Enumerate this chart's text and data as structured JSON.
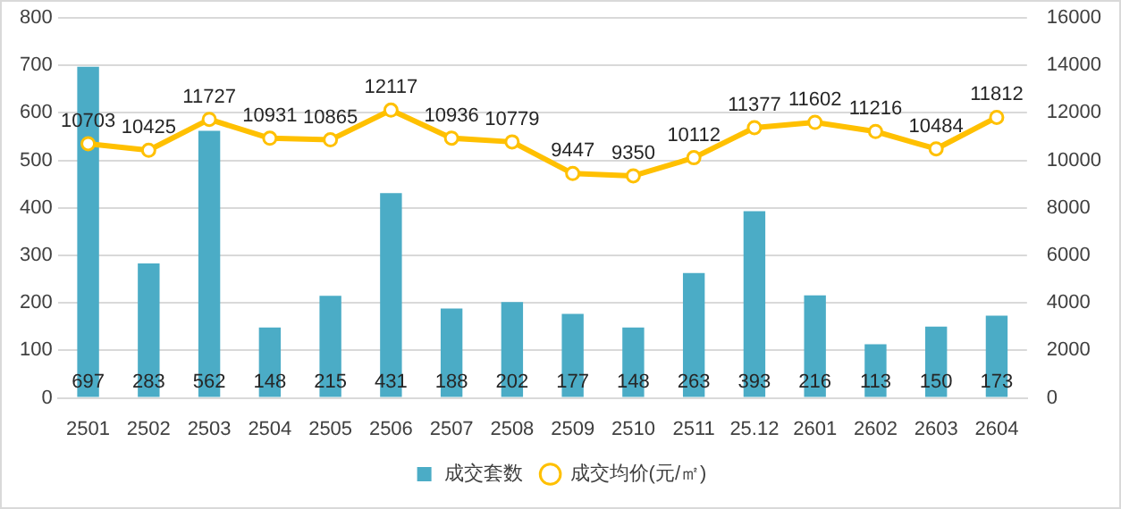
{
  "chart_data": {
    "type": "bar",
    "categories": [
      "2501",
      "2502",
      "2503",
      "2504",
      "2505",
      "2506",
      "2507",
      "2508",
      "2509",
      "2510",
      "2511",
      "25.12",
      "2601",
      "2602",
      "2603",
      "2604"
    ],
    "series": [
      {
        "name": "成交套数",
        "color": "#4bacc6",
        "values": [
          697,
          283,
          562,
          148,
          215,
          431,
          188,
          202,
          177,
          148,
          263,
          393,
          216,
          113,
          150,
          173
        ]
      },
      {
        "name": "成交均价(元/㎡)",
        "type": "line",
        "axis": "y2",
        "color": "#ffc000",
        "marker": "circle",
        "values": [
          10703,
          10425,
          11727,
          10931,
          10865,
          12117,
          10936,
          10779,
          9447,
          9350,
          10112,
          11377,
          11602,
          11216,
          10484,
          11812
        ]
      }
    ],
    "ylim": [
      0,
      800
    ],
    "yticks": [
      0,
      100,
      200,
      300,
      400,
      500,
      600,
      700,
      800
    ],
    "y2lim": [
      0,
      16000
    ],
    "y2ticks": [
      0,
      2000,
      4000,
      6000,
      8000,
      10000,
      12000,
      14000,
      16000
    ],
    "grid": "y",
    "legend": "bottom",
    "data_labels": true
  }
}
